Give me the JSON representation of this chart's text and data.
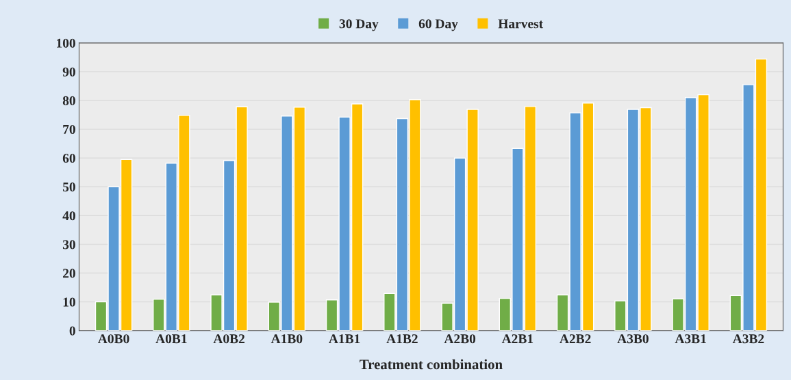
{
  "chart_data": {
    "type": "bar",
    "xlabel": "Treatment combination",
    "categories": [
      "A0B0",
      "A0B1",
      "A0B2",
      "A1B0",
      "A1B1",
      "A1B2",
      "A2B0",
      "A2B1",
      "A2B2",
      "A3B0",
      "A3B1",
      "A3B2"
    ],
    "series": [
      {
        "name": "30 Day",
        "color": "#70ad47",
        "values": [
          10.0,
          10.9,
          12.4,
          9.9,
          10.7,
          12.9,
          9.5,
          11.2,
          12.4,
          10.3,
          11.0,
          12.2
        ]
      },
      {
        "name": "60 Day",
        "color": "#5b9bd5",
        "values": [
          50.0,
          58.2,
          59.1,
          74.6,
          74.2,
          73.7,
          60.0,
          63.3,
          75.7,
          76.9,
          81.0,
          85.5
        ]
      },
      {
        "name": "Harvest",
        "color": "#ffc000",
        "values": [
          59.5,
          74.8,
          77.8,
          77.7,
          78.8,
          80.3,
          76.9,
          77.9,
          79.1,
          77.5,
          82.0,
          94.4
        ]
      }
    ],
    "ylim": [
      0,
      100
    ],
    "yticks": [
      0,
      10,
      20,
      30,
      40,
      50,
      60,
      70,
      80,
      90,
      100
    ],
    "grid": "y",
    "legend": "top"
  }
}
